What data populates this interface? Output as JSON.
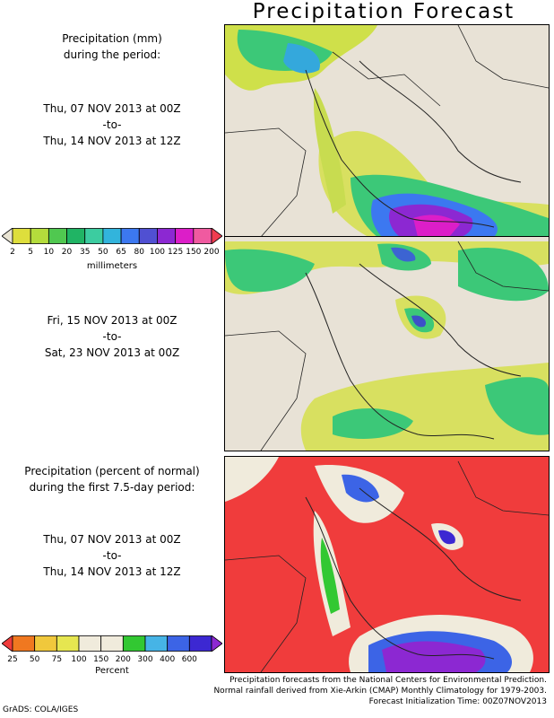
{
  "title": "Precipitation Forecast",
  "panel1_text": {
    "line1": "Precipitation (mm)",
    "line2": "during the period:",
    "start": "Thu, 07 NOV 2013 at 00Z",
    "sep": "-to-",
    "end": "Thu, 14 NOV 2013 at 12Z"
  },
  "panel2_text": {
    "start": "Fri, 15 NOV 2013 at 00Z",
    "sep": "-to-",
    "end": "Sat, 23 NOV 2013 at 00Z"
  },
  "panel3_text": {
    "line1": "Precipitation (percent of normal)",
    "line2": "during the first 7.5-day period:",
    "start": "Thu, 07 NOV 2013 at 00Z",
    "sep": "-to-",
    "end": "Thu, 14 NOV 2013 at 12Z"
  },
  "colorbar_mm": {
    "labels": [
      "2",
      "5",
      "10",
      "20",
      "35",
      "50",
      "65",
      "80",
      "100",
      "125",
      "150",
      "200"
    ],
    "colors": [
      "#e9e4d4",
      "#dede3c",
      "#b4dc3c",
      "#50c850",
      "#20b464",
      "#3ccca0",
      "#32b4dc",
      "#3c78f0",
      "#5050d2",
      "#8c28d2",
      "#dc1ec8",
      "#f05aa0",
      "#f03c50"
    ],
    "unit": "millimeters"
  },
  "colorbar_pct": {
    "labels": [
      "25",
      "50",
      "75",
      "100",
      "150",
      "200",
      "300",
      "400",
      "600"
    ],
    "colors": [
      "#f03c3c",
      "#f07820",
      "#f0c83c",
      "#e6e650",
      "#f0ebdc",
      "#f0ebdc",
      "#32c832",
      "#46b4e6",
      "#3c64e6",
      "#3c28d2",
      "#8c28d2"
    ],
    "unit": "Percent"
  },
  "footer": {
    "line1": "Precipitation forecasts from the National Centers for Environmental Prediction.",
    "line2": "Normal rainfall derived from Xie-Arkin (CMAP) Monthly Climatology for 1979-2003.",
    "line3": "Forecast Initialization Time: 00Z07NOV2013"
  },
  "credit": "GrADS: COLA/IGES"
}
